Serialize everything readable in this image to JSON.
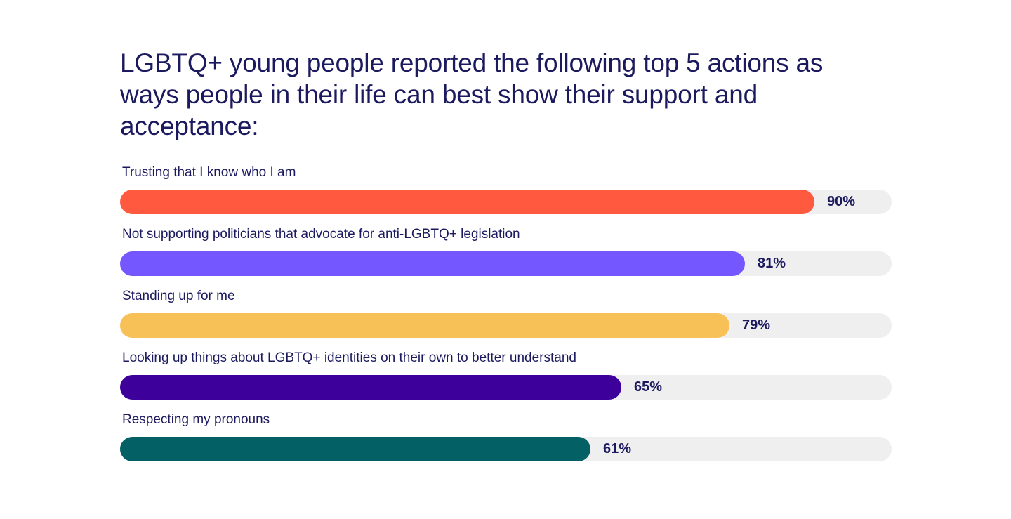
{
  "title": "LGBTQ+ young people reported the following top 5 actions as ways people in their life can best show their support and acceptance:",
  "chart_data": {
    "type": "bar",
    "orientation": "horizontal",
    "title": "LGBTQ+ young people reported the following top 5 actions as ways people in their life can best show their support and acceptance:",
    "xlim": [
      0,
      100
    ],
    "grid": false,
    "categories": [
      "Trusting that I know who I am",
      "Not supporting politicians that advocate for anti-LGBTQ+ legislation",
      "Standing up for me",
      "Looking up things about LGBTQ+ identities on their own to better understand",
      "Respecting my pronouns"
    ],
    "values": [
      90,
      81,
      79,
      65,
      61
    ],
    "value_labels": [
      "90%",
      "81%",
      "79%",
      "65%",
      "61%"
    ],
    "colors": [
      "#ff5a3f",
      "#7457ff",
      "#f8c158",
      "#3e009b",
      "#036165"
    ],
    "track_color": "#efeff0"
  }
}
